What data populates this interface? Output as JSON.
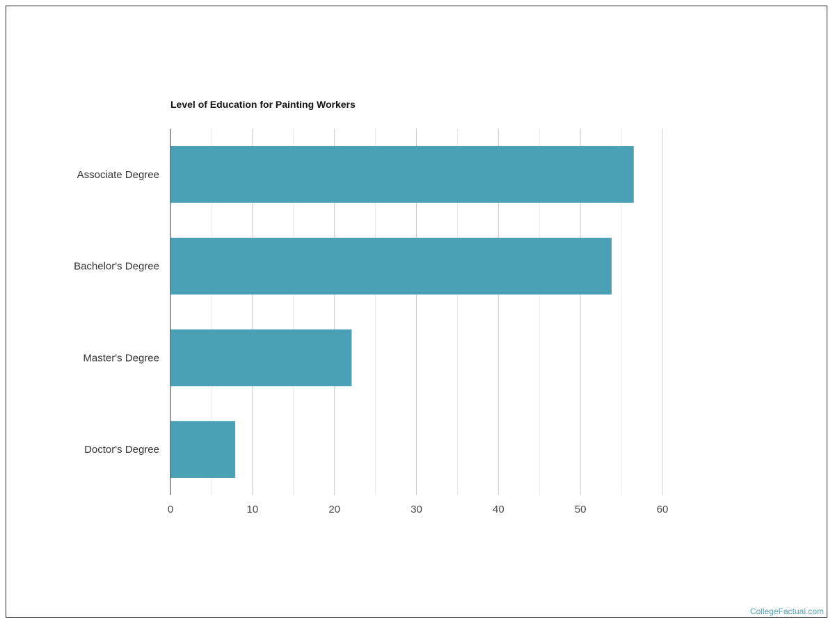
{
  "chart_data": {
    "type": "bar",
    "orientation": "horizontal",
    "title": "Level of Education for Painting Workers",
    "categories": [
      "Associate Degree",
      "Bachelor's Degree",
      "Master's Degree",
      "Doctor's Degree"
    ],
    "values": [
      56.5,
      53.8,
      22.1,
      7.9
    ],
    "xlim": [
      0,
      60
    ],
    "x_ticks": [
      0,
      10,
      20,
      30,
      40,
      50,
      60
    ],
    "grid": true,
    "bar_color": "#4aa0b5"
  },
  "watermark": "CollegeFactual.com"
}
